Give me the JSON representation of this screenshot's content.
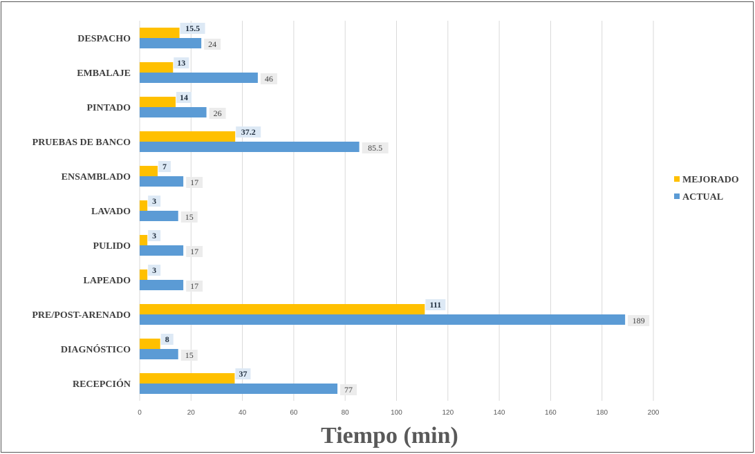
{
  "chart_data": {
    "type": "bar",
    "orientation": "horizontal",
    "categories": [
      "RECEPCIÓN",
      "DIAGNÓSTICO",
      "PRE/POST-ARENADO",
      "LAPEADO",
      "PULIDO",
      "LAVADO",
      "ENSAMBLADO",
      "PRUEBAS DE BANCO",
      "PINTADO",
      "EMBALAJE",
      "DESPACHO"
    ],
    "series": [
      {
        "name": "MEJORADO",
        "color": "#FFC000",
        "values": [
          37,
          8,
          111,
          3,
          3,
          3,
          7,
          37.2,
          14,
          13,
          15.5
        ],
        "labels": [
          "37",
          "8",
          "111",
          "3",
          "3",
          "3",
          "7",
          "37.2",
          "14",
          "13",
          "15.5"
        ]
      },
      {
        "name": "ACTUAL",
        "color": "#5B9BD5",
        "values": [
          77,
          15,
          189,
          17,
          17,
          15,
          17,
          85.5,
          26,
          46,
          24
        ],
        "labels": [
          "77",
          "15",
          "189",
          "17",
          "17",
          "15",
          "17",
          "85.5",
          "26",
          "46",
          "24"
        ]
      }
    ],
    "xlabel": "Tiempo (min)",
    "xlim": [
      0,
      200
    ],
    "xticks": [
      "0",
      "20",
      "40",
      "60",
      "80",
      "100",
      "120",
      "140",
      "160",
      "180",
      "200"
    ],
    "grid": "vertical",
    "legend_position": "right"
  }
}
